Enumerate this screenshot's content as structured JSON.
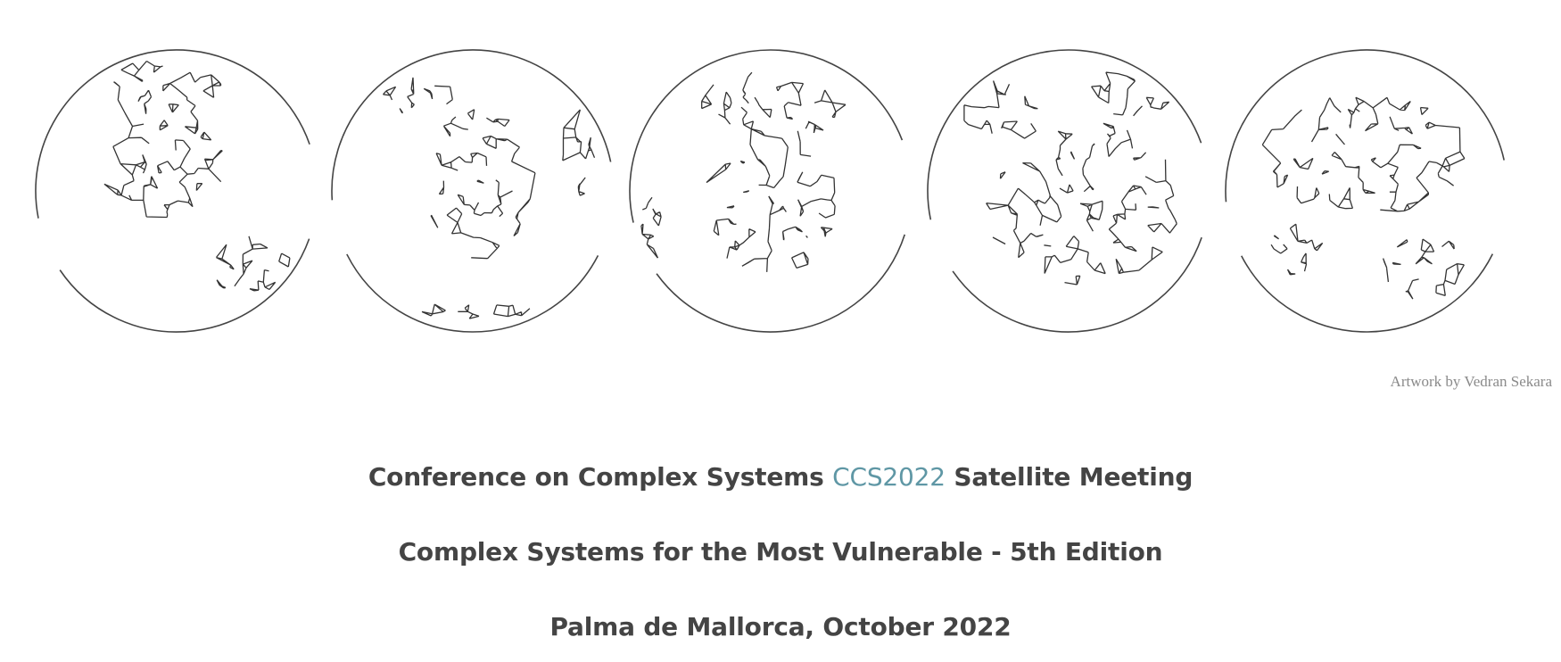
{
  "banner": {
    "globes": [
      {
        "name": "north-america",
        "accent_color": "#333333"
      },
      {
        "name": "south-america",
        "accent_color": "#333333"
      },
      {
        "name": "africa-europe",
        "accent_color": "#333333"
      },
      {
        "name": "asia",
        "accent_color": "#333333"
      },
      {
        "name": "asia-pacific",
        "accent_color": "#333333"
      }
    ],
    "credit": "Artwork by Vedran Sekara"
  },
  "heading": {
    "line1_prefix": "Conference on Complex Systems ",
    "line1_link": "CCS2022",
    "line1_suffix": " Satellite Meeting",
    "line2": "Complex Systems for the Most Vulnerable - 5th Edition",
    "line3": "Palma de Mallorca, October 2022"
  },
  "colors": {
    "text": "#444444",
    "link": "#5f97a5",
    "credit": "#8a8a8a"
  }
}
